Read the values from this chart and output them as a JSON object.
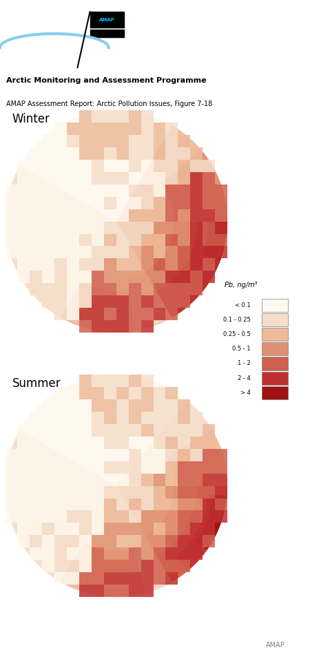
{
  "title1": "Winter",
  "title2": "Summer",
  "header_line1": "Arctic Monitoring and Assessment Programme",
  "header_line2": "AMAP Assessment Report: Arctic Pollution Issues, Figure 7-18",
  "footer": "AMAP",
  "legend_title": "Pb, ng/m³",
  "legend_labels": [
    "< 0.1",
    "0.1 - 0.25",
    "0.25 - 0.5",
    "0.5 - 1",
    "1 - 2",
    "2 - 4",
    "> 4"
  ],
  "legend_colors": [
    "#FFF8EE",
    "#F5DECA",
    "#EDBA9A",
    "#E09070",
    "#D06050",
    "#C03030",
    "#A01010"
  ],
  "background_color": "#FFFFFF",
  "map_bg": "#F5EEE5"
}
